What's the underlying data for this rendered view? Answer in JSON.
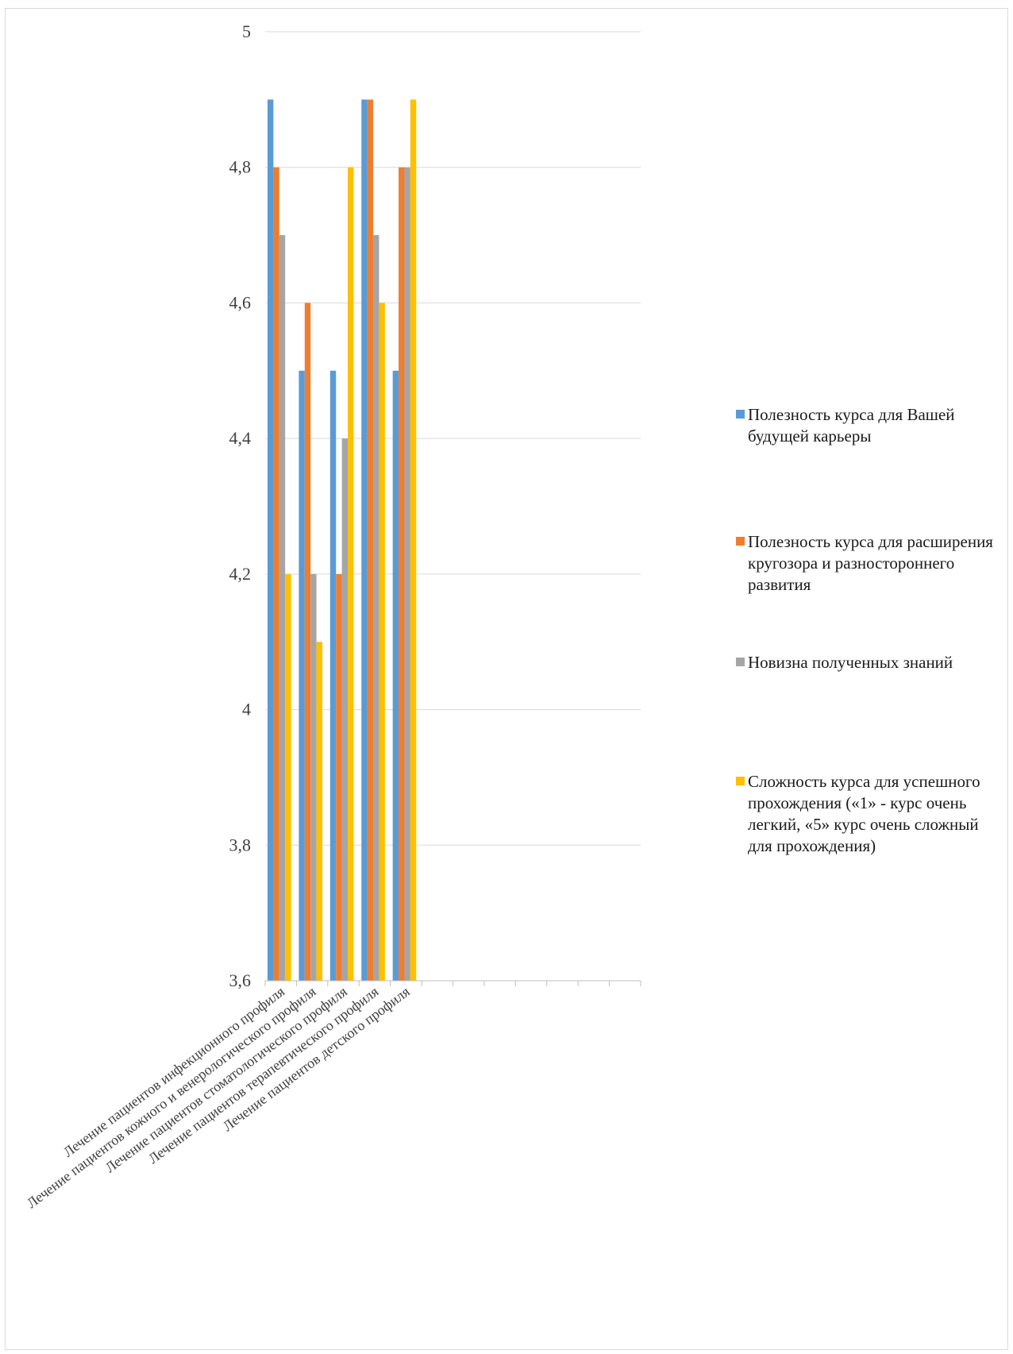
{
  "chart_data": {
    "type": "bar",
    "categories": [
      "Лечение пациентов инфекционного профиля",
      "Лечение пациентов кожного и венерологического профиля",
      "Лечение пациентов стоматологического профиля",
      "Лечение пациентов терапевтического профиля",
      "Лечение пациентов детского профиля",
      "",
      "",
      "",
      "",
      "",
      "",
      ""
    ],
    "series": [
      {
        "name": "Полезность курса для Вашей будущей карьеры",
        "color": "#5B9BD5",
        "values": [
          4.9,
          4.5,
          4.5,
          4.9,
          4.5,
          null,
          null,
          null,
          null,
          null,
          null,
          null
        ]
      },
      {
        "name": "Полезность курса для расширения кругозора и разностороннего развития",
        "color": "#ED7D31",
        "values": [
          4.8,
          4.6,
          4.2,
          4.9,
          4.8,
          null,
          null,
          null,
          null,
          null,
          null,
          null
        ]
      },
      {
        "name": "Новизна полученных знаний",
        "color": "#A5A5A5",
        "values": [
          4.7,
          4.2,
          4.4,
          4.7,
          4.8,
          null,
          null,
          null,
          null,
          null,
          null,
          null
        ]
      },
      {
        "name": "Сложность курса для успешного прохождения («1» - курс очень легкий, «5» курс очень сложный для прохождения)",
        "color": "#FFC000",
        "values": [
          4.2,
          4.1,
          4.8,
          4.6,
          4.9,
          null,
          null,
          null,
          null,
          null,
          null,
          null
        ]
      }
    ],
    "ylim": [
      3.6,
      5
    ],
    "yticks": [
      "3,6",
      "3,8",
      "4",
      "4,2",
      "4,4",
      "4,6",
      "4,8",
      "5"
    ],
    "ytick_values": [
      3.6,
      3.8,
      4.0,
      4.2,
      4.4,
      4.6,
      4.8,
      5.0
    ],
    "grid": true,
    "legend_position": "right"
  }
}
